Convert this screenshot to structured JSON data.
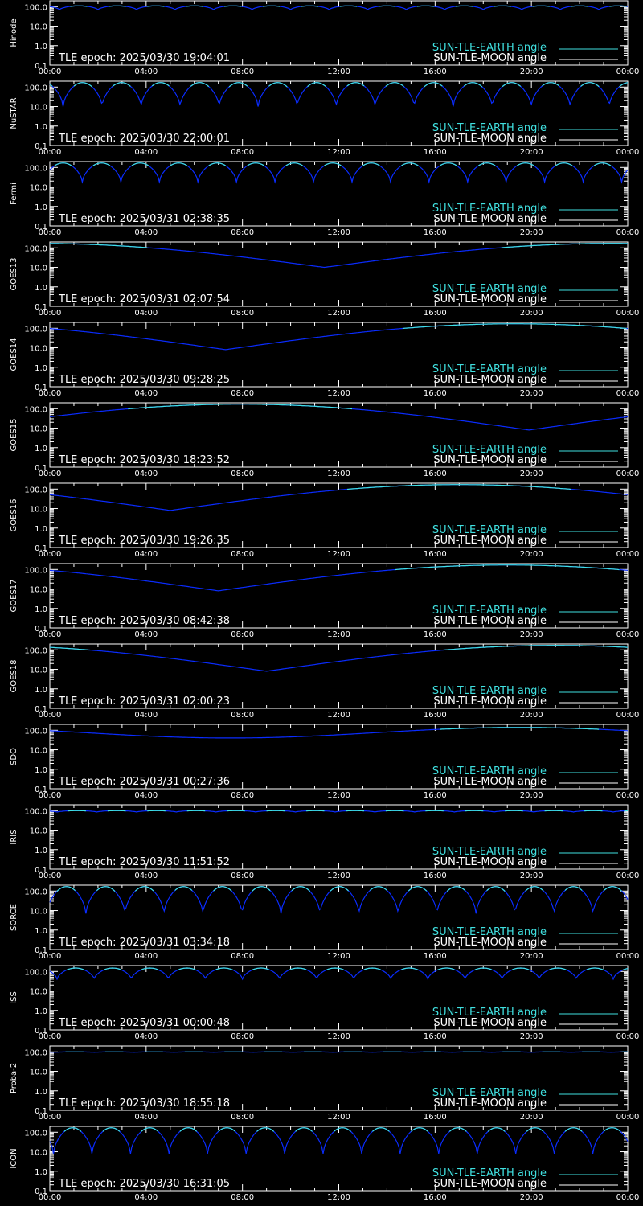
{
  "x_ticks": [
    "00:00",
    "04:00",
    "08:00",
    "12:00",
    "16:00",
    "20:00",
    "00:00"
  ],
  "y_ticks": [
    "100.0",
    "10.0",
    "1.0",
    "0.1"
  ],
  "legend": {
    "earth": "SUN-TLE-EARTH angle",
    "moon": "SUN-TLE-MOON angle"
  },
  "epoch_prefix": "TLE epoch: ",
  "colors": {
    "earth": "#40e0e0",
    "moon": "#ffffff",
    "dip": "#0a2cff",
    "axis": "#ffffff"
  },
  "chart_data": [
    {
      "type": "line",
      "satellite": "Hinode",
      "epoch": "2025/03/30 19:04:01",
      "ylim": [
        0.1,
        200
      ],
      "y_scale": "log",
      "x_unit": "hours",
      "xlim": [
        0,
        24
      ],
      "pattern": "periodic",
      "period_hours": 1.6,
      "phase_hours": 0.4,
      "min_value": 70,
      "max_value": 110
    },
    {
      "type": "line",
      "satellite": "NuSTAR",
      "epoch": "2025/03/30 22:00:01",
      "ylim": [
        0.1,
        200
      ],
      "y_scale": "log",
      "x_unit": "hours",
      "xlim": [
        0,
        24
      ],
      "pattern": "periodic",
      "period_hours": 1.62,
      "phase_hours": 0.55,
      "min_value": 10,
      "max_value": 170
    },
    {
      "type": "line",
      "satellite": "Fermi",
      "epoch": "2025/03/31 02:38:35",
      "ylim": [
        0.1,
        200
      ],
      "y_scale": "log",
      "x_unit": "hours",
      "xlim": [
        0,
        24
      ],
      "pattern": "periodic",
      "period_hours": 1.6,
      "phase_hours": 1.35,
      "min_value": 18,
      "max_value": 170
    },
    {
      "type": "line",
      "satellite": "GOES13",
      "epoch": "2025/03/31 02:07:54",
      "ylim": [
        0.1,
        200
      ],
      "y_scale": "log",
      "x_unit": "hours",
      "xlim": [
        0,
        24
      ],
      "pattern": "single-dip",
      "dip_hour": 11.4,
      "min_value": 10,
      "max_value": 170
    },
    {
      "type": "line",
      "satellite": "GOES14",
      "epoch": "2025/03/30 09:28:25",
      "ylim": [
        0.1,
        200
      ],
      "y_scale": "log",
      "x_unit": "hours",
      "xlim": [
        0,
        24
      ],
      "pattern": "single-dip",
      "dip_hour": 7.3,
      "min_value": 8,
      "max_value": 170
    },
    {
      "type": "line",
      "satellite": "GOES15",
      "epoch": "2025/03/30 18:23:52",
      "ylim": [
        0.1,
        200
      ],
      "y_scale": "log",
      "x_unit": "hours",
      "xlim": [
        0,
        24
      ],
      "pattern": "single-dip",
      "dip_hour": 19.9,
      "min_value": 8,
      "max_value": 170
    },
    {
      "type": "line",
      "satellite": "GOES16",
      "epoch": "2025/03/30 19:26:35",
      "ylim": [
        0.1,
        200
      ],
      "y_scale": "log",
      "x_unit": "hours",
      "xlim": [
        0,
        24
      ],
      "pattern": "single-dip",
      "dip_hour": 5.0,
      "min_value": 8,
      "max_value": 170
    },
    {
      "type": "line",
      "satellite": "GOES17",
      "epoch": "2025/03/30 08:42:38",
      "ylim": [
        0.1,
        200
      ],
      "y_scale": "log",
      "x_unit": "hours",
      "xlim": [
        0,
        24
      ],
      "pattern": "single-dip",
      "dip_hour": 7.0,
      "min_value": 8,
      "max_value": 170
    },
    {
      "type": "line",
      "satellite": "GOES18",
      "epoch": "2025/03/31 02:00:23",
      "ylim": [
        0.1,
        200
      ],
      "y_scale": "log",
      "x_unit": "hours",
      "xlim": [
        0,
        24
      ],
      "pattern": "single-dip",
      "dip_hour": 9.0,
      "min_value": 8,
      "max_value": 170
    },
    {
      "type": "line",
      "satellite": "SDO",
      "epoch": "2025/03/31 00:27:36",
      "ylim": [
        0.1,
        200
      ],
      "y_scale": "log",
      "x_unit": "hours",
      "xlim": [
        0,
        24
      ],
      "pattern": "smooth",
      "dip_hour": 7.5,
      "min_value": 40,
      "max_value": 140
    },
    {
      "type": "line",
      "satellite": "IRIS",
      "epoch": "2025/03/30 11:51:52",
      "ylim": [
        0.1,
        200
      ],
      "y_scale": "log",
      "x_unit": "hours",
      "xlim": [
        0,
        24
      ],
      "pattern": "periodic",
      "period_hours": 1.65,
      "phase_hours": 0.3,
      "min_value": 85,
      "max_value": 100
    },
    {
      "type": "line",
      "satellite": "SORCE",
      "epoch": "2025/03/31 03:34:18",
      "ylim": [
        0.1,
        200
      ],
      "y_scale": "log",
      "x_unit": "hours",
      "xlim": [
        0,
        24
      ],
      "pattern": "periodic",
      "period_hours": 1.62,
      "phase_hours": 1.5,
      "min_value": 7,
      "max_value": 170
    },
    {
      "type": "line",
      "satellite": "ISS",
      "epoch": "2025/03/31 00:00:48",
      "ylim": [
        0.1,
        200
      ],
      "y_scale": "log",
      "x_unit": "hours",
      "xlim": [
        0,
        24
      ],
      "pattern": "periodic",
      "period_hours": 1.54,
      "phase_hours": 0.3,
      "min_value": 40,
      "max_value": 150
    },
    {
      "type": "line",
      "satellite": "Proba-2",
      "epoch": "2025/03/30 18:55:18",
      "ylim": [
        0.1,
        200
      ],
      "y_scale": "log",
      "x_unit": "hours",
      "xlim": [
        0,
        24
      ],
      "pattern": "periodic",
      "period_hours": 1.65,
      "phase_hours": 0.2,
      "min_value": 95,
      "max_value": 100
    },
    {
      "type": "line",
      "satellite": "ICON",
      "epoch": "2025/03/30 16:31:05",
      "ylim": [
        0.1,
        200
      ],
      "y_scale": "log",
      "x_unit": "hours",
      "xlim": [
        0,
        24
      ],
      "pattern": "periodic",
      "period_hours": 1.6,
      "phase_hours": 1.75,
      "min_value": 8,
      "max_value": 170
    }
  ]
}
